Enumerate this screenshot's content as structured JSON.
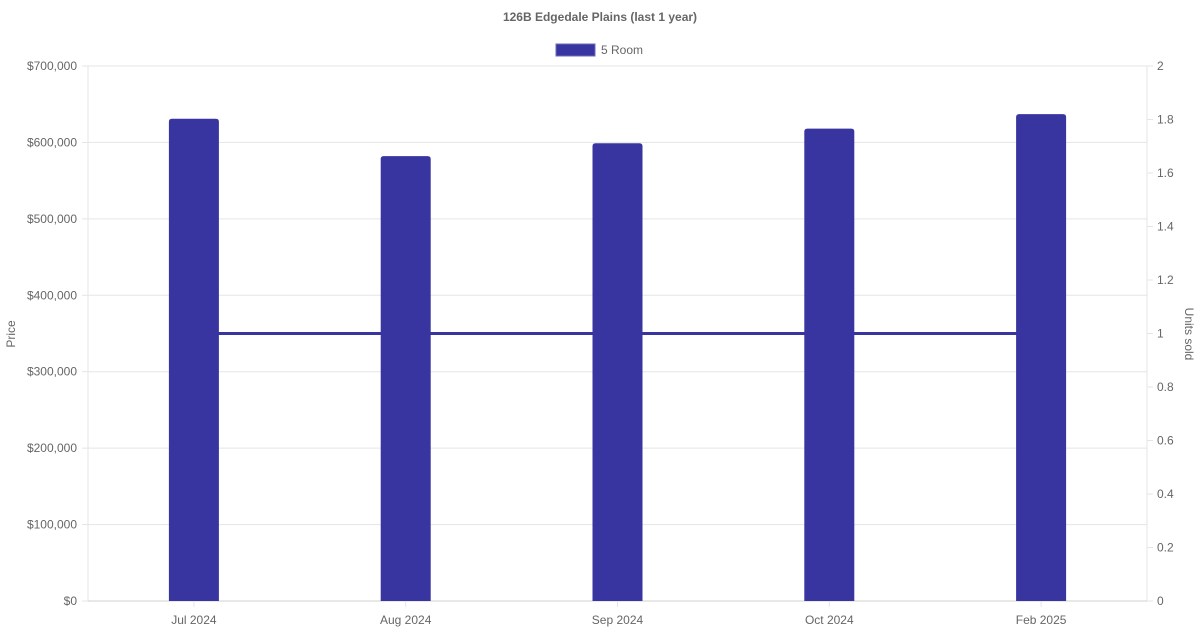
{
  "chart_data": {
    "type": "bar",
    "title": "126B Edgedale  Plains (last 1 year)",
    "categories": [
      "Jul 2024",
      "Aug 2024",
      "Sep 2024",
      "Oct 2024",
      "Feb 2025"
    ],
    "series": [
      {
        "name": "5 Room",
        "type": "bar",
        "axis": "left",
        "values": [
          631000,
          582000,
          599000,
          618000,
          637000
        ],
        "color": "#3834a0"
      },
      {
        "type": "line",
        "axis": "right",
        "values": [
          1,
          1,
          1,
          1,
          1
        ],
        "color": "#3834a0"
      }
    ],
    "ylabel": "Price",
    "ylabel_right": "Units sold",
    "ylim": [
      0,
      700000
    ],
    "ylim_right": [
      0,
      2
    ],
    "yticks": [
      "$0",
      "$100,000",
      "$200,000",
      "$300,000",
      "$400,000",
      "$500,000",
      "$600,000",
      "$700,000"
    ],
    "yticks_right": [
      "0",
      "0.2",
      "0.4",
      "0.6",
      "0.8",
      "1",
      "1.2",
      "1.4",
      "1.6",
      "1.8",
      "2"
    ],
    "legend": [
      "5 Room"
    ],
    "legend_position": "top",
    "grid": true
  }
}
